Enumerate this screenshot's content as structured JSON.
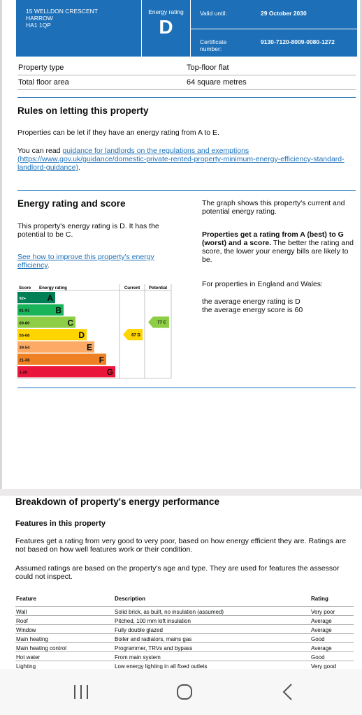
{
  "header": {
    "address": [
      "15 WELLDON CRESCENT",
      "HARROW",
      "HA1 1QP"
    ],
    "energy_rating_label": "Energy rating",
    "energy_rating": "D",
    "valid_until_label": "Valid until:",
    "valid_until": "29 October 2030",
    "certificate_label": "Certificate number:",
    "certificate_number": "9130-7120-8009-0080-1272"
  },
  "summary": [
    {
      "key": "Property type",
      "value": "Top-floor flat"
    },
    {
      "key": "Total floor area",
      "value": "64 square metres"
    }
  ],
  "letting": {
    "title": "Rules on letting this property",
    "p1": "Properties can be let if they have an energy rating from A to E.",
    "p2_prefix": "You can read ",
    "p2_link": "guidance for landlords on the regulations and exemptions (https://www.gov.uk/guidance/domestic-private-rented-property-minimum-energy-efficiency-standard-landlord-guidance)",
    "p2_suffix": "."
  },
  "rating_section": {
    "title": "Energy rating and score",
    "p1": "This property's energy rating is D. It has the potential to be C.",
    "improve_link": "See how to improve this property's energy efficiency",
    "improve_suffix": ".",
    "right_p1": "The graph shows this property's current and potential energy rating.",
    "right_p2_bold": "Properties get a rating from A (best) to G (worst) and a score.",
    "right_p2_rest": " The better the rating and score, the lower your energy bills are likely to be.",
    "right_p3": "For properties in England and Wales:",
    "right_p4a": "the average energy rating is D",
    "right_p4b": "the average energy score is 60"
  },
  "chart_data": {
    "type": "bar",
    "headers": {
      "score": "Score",
      "rating": "Energy rating",
      "current": "Current",
      "potential": "Potential"
    },
    "bands": [
      {
        "range": "92+",
        "letter": "A",
        "color": "#008054"
      },
      {
        "range": "81-91",
        "letter": "B",
        "color": "#19b459"
      },
      {
        "range": "69-80",
        "letter": "C",
        "color": "#8dce46"
      },
      {
        "range": "55-68",
        "letter": "D",
        "color": "#ffd500"
      },
      {
        "range": "39-54",
        "letter": "E",
        "color": "#fcaa65"
      },
      {
        "range": "21-38",
        "letter": "F",
        "color": "#ef8023"
      },
      {
        "range": "1-20",
        "letter": "G",
        "color": "#e9153b"
      }
    ],
    "current": {
      "score": 67,
      "letter": "D",
      "label": "67 D",
      "color": "#ffd500"
    },
    "potential": {
      "score": 77,
      "letter": "C",
      "label": "77 C",
      "color": "#8dce46"
    }
  },
  "breakdown": {
    "title": "Breakdown of property's energy performance",
    "subtitle": "Features in this property",
    "p1": "Features get a rating from very good to very poor, based on how energy efficient they are. Ratings are not based on how well features work or their condition.",
    "p2": "Assumed ratings are based on the property's age and type. They are used for features the assessor could not inspect.",
    "columns": [
      "Feature",
      "Description",
      "Rating"
    ],
    "rows": [
      [
        "Wall",
        "Solid brick, as built, no insulation (assumed)",
        "Very poor"
      ],
      [
        "Roof",
        "Pitched, 100 mm loft insulation",
        "Average"
      ],
      [
        "Window",
        "Fully double glazed",
        "Average"
      ],
      [
        "Main heating",
        "Boiler and radiators, mains gas",
        "Good"
      ],
      [
        "Main heating control",
        "Programmer, TRVs and bypass",
        "Average"
      ],
      [
        "Hot water",
        "From main system",
        "Good"
      ],
      [
        "Lighting",
        "Low energy lighting in all fixed outlets",
        "Very good"
      ]
    ]
  },
  "navbar": {
    "recent": "recent-apps-icon",
    "home": "home-icon",
    "back": "back-icon"
  }
}
